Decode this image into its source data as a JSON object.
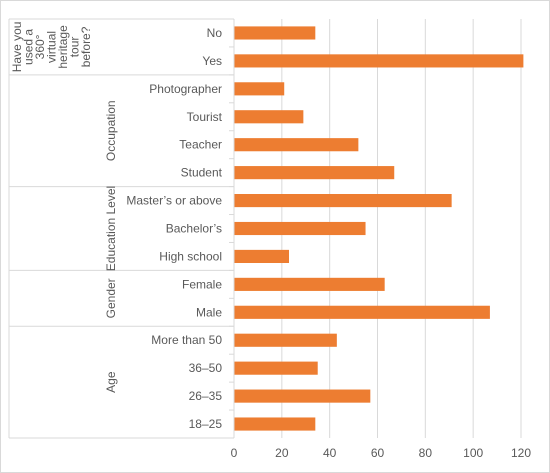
{
  "chart_data": {
    "type": "bar",
    "orientation": "horizontal",
    "grid": true,
    "legend": "none",
    "bar_color": "#ED7D31",
    "grid_color": "#d9d9d9",
    "text_color": "#595959",
    "xlim": [
      0,
      120
    ],
    "x_ticks": [
      "0",
      "20",
      "40",
      "60",
      "80",
      "100",
      "120"
    ],
    "groups": [
      {
        "name": "Have you used a 360° virtual heritage tour before?",
        "name_lines": [
          "Have you",
          "used a",
          "360°",
          "virtual",
          "heritage",
          "tour",
          "before?"
        ],
        "categories": [
          "No",
          "Yes"
        ],
        "values": [
          34,
          121
        ]
      },
      {
        "name": "Occupation",
        "categories": [
          "Photographer",
          "Tourist",
          "Teacher",
          "Student"
        ],
        "values": [
          21,
          29,
          52,
          67
        ]
      },
      {
        "name": "Education Level",
        "categories": [
          "Master’s or above",
          "Bachelor’s",
          "High school"
        ],
        "values": [
          91,
          55,
          23
        ]
      },
      {
        "name": "Gender",
        "categories": [
          "Female",
          "Male"
        ],
        "values": [
          63,
          107
        ]
      },
      {
        "name": "Age",
        "categories": [
          "More than 50",
          "36–50",
          "26–35",
          "18–25"
        ],
        "values": [
          43,
          35,
          57,
          34
        ]
      }
    ]
  }
}
